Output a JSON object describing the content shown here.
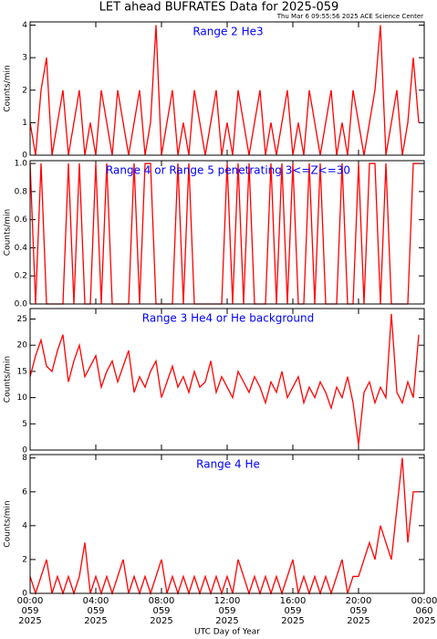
{
  "header": {
    "title": "LET ahead BUFRATES Data for 2025-059",
    "subtitle": "Thu Mar  6 09:55:56 2025 ACE Science Center"
  },
  "chart_data": [
    {
      "type": "line",
      "title": "Range 2 He3",
      "ylabel": "Counts/min",
      "color": "#ff0000",
      "xlim": [
        0,
        1440
      ],
      "ylim": [
        0,
        4.1
      ],
      "yticks": [
        0,
        1,
        2,
        3,
        4
      ],
      "x": [
        0,
        20,
        40,
        60,
        80,
        100,
        120,
        140,
        160,
        180,
        200,
        220,
        240,
        260,
        280,
        300,
        320,
        340,
        360,
        380,
        400,
        420,
        440,
        460,
        480,
        500,
        520,
        540,
        560,
        580,
        600,
        620,
        640,
        660,
        680,
        700,
        720,
        740,
        760,
        780,
        800,
        820,
        840,
        860,
        880,
        900,
        920,
        940,
        960,
        980,
        1000,
        1020,
        1040,
        1060,
        1080,
        1100,
        1120,
        1140,
        1160,
        1180,
        1200,
        1220,
        1240,
        1260,
        1280,
        1300,
        1320,
        1340,
        1360,
        1380,
        1400,
        1420
      ],
      "values": [
        1,
        0,
        2,
        3,
        0,
        1,
        2,
        0,
        1,
        2,
        0,
        1,
        0,
        2,
        1,
        0,
        2,
        1,
        0,
        1,
        2,
        0,
        1,
        4,
        0,
        1,
        2,
        0,
        1,
        0,
        2,
        1,
        0,
        1,
        2,
        0,
        1,
        0,
        2,
        1,
        0,
        1,
        2,
        0,
        1,
        0,
        1,
        2,
        0,
        1,
        0,
        2,
        1,
        0,
        1,
        2,
        0,
        1,
        0,
        2,
        1,
        0,
        1,
        2,
        4,
        0,
        1,
        2,
        0,
        1,
        3,
        1
      ]
    },
    {
      "type": "line",
      "title": "Range 4 or Range 5 penetrating 3<=Z<=30",
      "ylabel": "Counts/min",
      "color": "#ff0000",
      "xlim": [
        0,
        1440
      ],
      "ylim": [
        0,
        1.02
      ],
      "yticks": [
        {
          "value": 0,
          "label": "0.0"
        },
        {
          "value": 0.2,
          "label": "0.2"
        },
        {
          "value": 0.4,
          "label": "0.4"
        },
        {
          "value": 0.6,
          "label": "0.6"
        },
        {
          "value": 0.8,
          "label": "0.8"
        },
        {
          "value": 1,
          "label": "1.0"
        }
      ],
      "x": [
        0,
        20,
        40,
        60,
        80,
        100,
        120,
        140,
        160,
        180,
        200,
        220,
        240,
        260,
        280,
        300,
        320,
        340,
        360,
        380,
        400,
        420,
        440,
        460,
        480,
        500,
        520,
        540,
        560,
        580,
        600,
        620,
        640,
        660,
        680,
        700,
        720,
        740,
        760,
        780,
        800,
        820,
        840,
        860,
        880,
        900,
        920,
        940,
        960,
        980,
        1000,
        1020,
        1040,
        1060,
        1080,
        1100,
        1120,
        1140,
        1160,
        1180,
        1200,
        1220,
        1240,
        1260,
        1280,
        1300,
        1320,
        1340,
        1360,
        1380,
        1400,
        1420
      ],
      "values": [
        1,
        0,
        1,
        0,
        0,
        0,
        0,
        1,
        0,
        1,
        0,
        0,
        1,
        0,
        1,
        0,
        0,
        0,
        0,
        1,
        0,
        1,
        1,
        0,
        0,
        0,
        0,
        1,
        0,
        1,
        0,
        0,
        0,
        0,
        0,
        0,
        1,
        0,
        1,
        0,
        1,
        0,
        0,
        0,
        1,
        0,
        1,
        0,
        1,
        0,
        0,
        1,
        0,
        1,
        0,
        0,
        0,
        1,
        0,
        0,
        1,
        0,
        1,
        1,
        0,
        1,
        0,
        0,
        0,
        0,
        1,
        1
      ]
    },
    {
      "type": "line",
      "title": "Range 3 He4 or He background",
      "ylabel": "Counts/min",
      "color": "#ff0000",
      "xlim": [
        0,
        1440
      ],
      "ylim": [
        0,
        27
      ],
      "yticks": [
        0,
        5,
        10,
        15,
        20,
        25
      ],
      "x": [
        0,
        20,
        40,
        60,
        80,
        100,
        120,
        140,
        160,
        180,
        200,
        220,
        240,
        260,
        280,
        300,
        320,
        340,
        360,
        380,
        400,
        420,
        440,
        460,
        480,
        500,
        520,
        540,
        560,
        580,
        600,
        620,
        640,
        660,
        680,
        700,
        720,
        740,
        760,
        780,
        800,
        820,
        840,
        860,
        880,
        900,
        920,
        940,
        960,
        980,
        1000,
        1020,
        1040,
        1060,
        1080,
        1100,
        1120,
        1140,
        1160,
        1180,
        1200,
        1220,
        1240,
        1260,
        1280,
        1300,
        1320,
        1340,
        1360,
        1380,
        1400,
        1420
      ],
      "values": [
        14,
        18,
        21,
        16,
        15,
        19,
        22,
        13,
        17,
        20,
        14,
        16,
        18,
        12,
        15,
        17,
        13,
        16,
        19,
        11,
        14,
        12,
        15,
        17,
        10,
        13,
        16,
        12,
        14,
        11,
        15,
        12,
        13,
        17,
        11,
        14,
        12,
        10,
        15,
        13,
        11,
        14,
        12,
        9,
        13,
        11,
        15,
        10,
        12,
        14,
        9,
        12,
        10,
        13,
        11,
        8,
        12,
        10,
        14,
        9,
        1,
        11,
        13,
        9,
        12,
        10,
        26,
        11,
        9,
        13,
        10,
        22
      ]
    },
    {
      "type": "line",
      "title": "Range 4 He",
      "ylabel": "Counts/min",
      "xlabel": "UTC Day of Year",
      "color": "#ff0000",
      "xlim": [
        0,
        1440
      ],
      "ylim": [
        0,
        8.2
      ],
      "yticks": [
        0,
        2,
        4,
        6,
        8
      ],
      "xticks": [
        {
          "value": 0,
          "label": "00:00\n059\n2025"
        },
        {
          "value": 240,
          "label": "04:00\n059\n2025"
        },
        {
          "value": 480,
          "label": "08:00\n059\n2025"
        },
        {
          "value": 720,
          "label": "12:00\n059\n2025"
        },
        {
          "value": 960,
          "label": "16:00\n059\n2025"
        },
        {
          "value": 1200,
          "label": "20:00\n059\n2025"
        },
        {
          "value": 1440,
          "label": "00:00\n060\n2025"
        }
      ],
      "x": [
        0,
        20,
        40,
        60,
        80,
        100,
        120,
        140,
        160,
        180,
        200,
        220,
        240,
        260,
        280,
        300,
        320,
        340,
        360,
        380,
        400,
        420,
        440,
        460,
        480,
        500,
        520,
        540,
        560,
        580,
        600,
        620,
        640,
        660,
        680,
        700,
        720,
        740,
        760,
        780,
        800,
        820,
        840,
        860,
        880,
        900,
        920,
        940,
        960,
        980,
        1000,
        1020,
        1040,
        1060,
        1080,
        1100,
        1120,
        1140,
        1160,
        1180,
        1200,
        1220,
        1240,
        1260,
        1280,
        1300,
        1320,
        1340,
        1360,
        1380,
        1400,
        1420
      ],
      "values": [
        1,
        0,
        1,
        2,
        0,
        1,
        0,
        1,
        0,
        1,
        3,
        0,
        1,
        0,
        1,
        0,
        1,
        2,
        0,
        1,
        0,
        1,
        0,
        1,
        2,
        0,
        1,
        0,
        1,
        0,
        1,
        0,
        1,
        0,
        1,
        0,
        1,
        0,
        2,
        1,
        0,
        1,
        0,
        1,
        0,
        1,
        0,
        1,
        2,
        0,
        1,
        0,
        1,
        0,
        1,
        0,
        1,
        2,
        0,
        1,
        1,
        2,
        3,
        2,
        4,
        3,
        2,
        5,
        8,
        3,
        6,
        6
      ]
    }
  ]
}
